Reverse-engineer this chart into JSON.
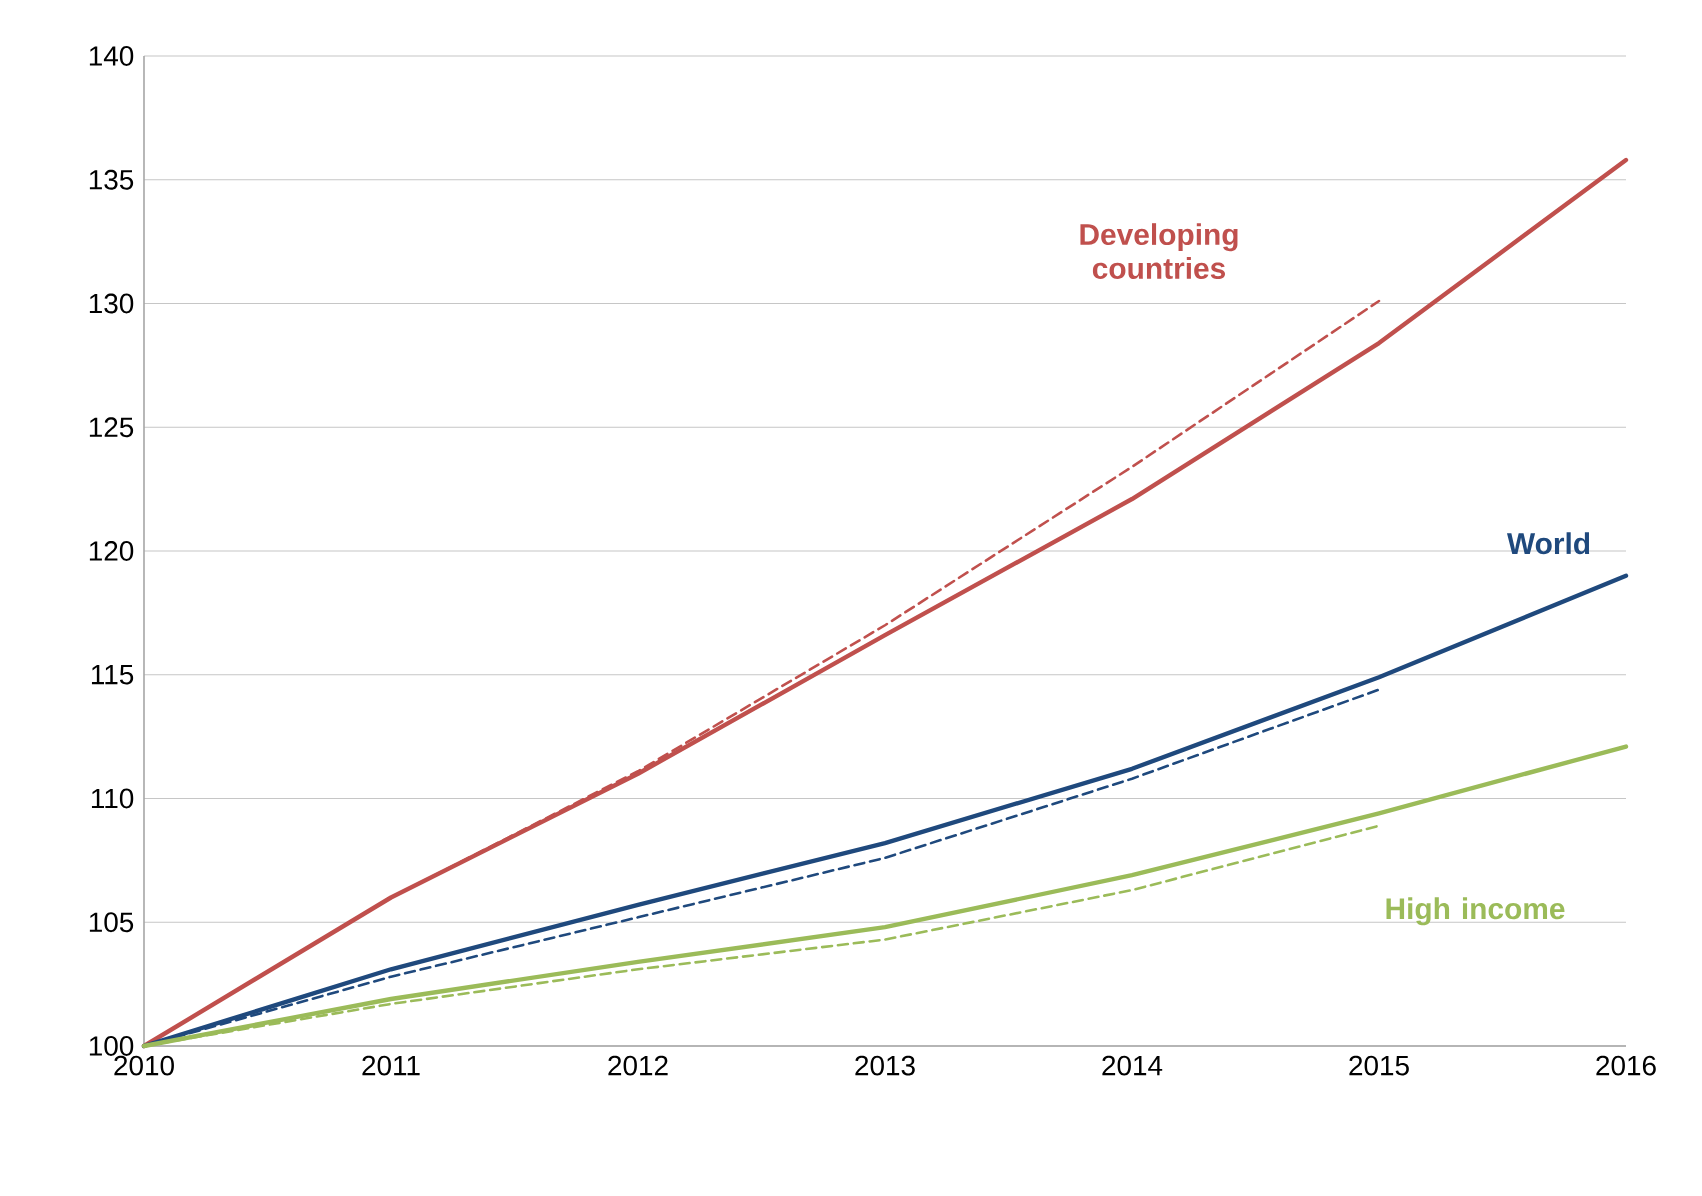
{
  "chart_data": {
    "type": "line",
    "x": [
      2010,
      2011,
      2012,
      2013,
      2014,
      2015,
      2016
    ],
    "series": [
      {
        "name": "Developing countries",
        "color": "#c0504d",
        "line_style": "solid",
        "values": [
          100,
          106,
          111,
          116.6,
          122.1,
          128.4,
          135.8
        ]
      },
      {
        "color": "#c0504d",
        "line_style": "dashed",
        "values": [
          100,
          106,
          111.1,
          117,
          123.4,
          130.1,
          null
        ]
      },
      {
        "name": "World",
        "color": "#1f497d",
        "line_style": "solid",
        "values": [
          100,
          103.1,
          105.7,
          108.2,
          111.2,
          114.9,
          119
        ]
      },
      {
        "color": "#1f497d",
        "line_style": "dashed",
        "values": [
          100,
          102.8,
          105.2,
          107.6,
          110.8,
          114.4,
          null
        ]
      },
      {
        "name": "High income",
        "color": "#9bbb59",
        "line_style": "solid",
        "values": [
          100,
          101.9,
          103.4,
          104.8,
          106.9,
          109.4,
          112.1
        ]
      },
      {
        "color": "#9bbb59",
        "line_style": "dashed",
        "values": [
          100,
          101.7,
          103.1,
          104.3,
          106.3,
          108.9,
          null
        ]
      }
    ],
    "xlim": [
      2010,
      2016
    ],
    "xticks": [
      2010,
      2011,
      2012,
      2013,
      2014,
      2015,
      2016
    ],
    "ylim": [
      100,
      140
    ],
    "yticks": [
      100,
      105,
      110,
      115,
      120,
      125,
      130,
      135,
      140
    ],
    "grid": "y"
  }
}
